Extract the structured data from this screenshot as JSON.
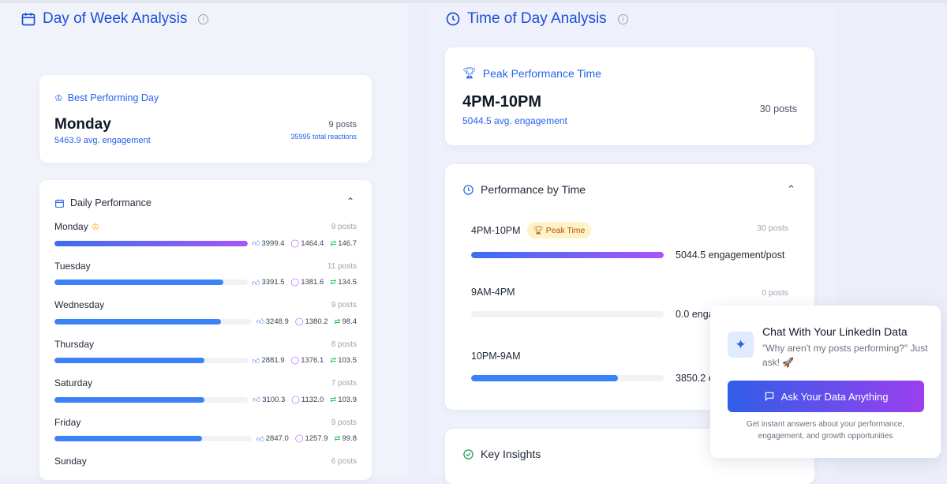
{
  "day_analysis": {
    "title": "Day of Week Analysis",
    "best": {
      "label": "Best Performing Day",
      "day": "Monday",
      "avg": "5463.9 avg. engagement",
      "posts": "9 posts",
      "reactions": "35995 total reactions"
    },
    "daily": {
      "title": "Daily Performance",
      "rows": [
        {
          "day": "Monday",
          "posts": "9 posts",
          "likes": "3999.4",
          "comments": "1464.4",
          "reposts": "146.7",
          "best": true
        },
        {
          "day": "Tuesday",
          "posts": "11 posts",
          "likes": "3391.5",
          "comments": "1381.6",
          "reposts": "134.5"
        },
        {
          "day": "Wednesday",
          "posts": "9 posts",
          "likes": "3248.9",
          "comments": "1380.2",
          "reposts": "98.4"
        },
        {
          "day": "Thursday",
          "posts": "8 posts",
          "likes": "2881.9",
          "comments": "1376.1",
          "reposts": "103.5"
        },
        {
          "day": "Saturday",
          "posts": "7 posts",
          "likes": "3100.3",
          "comments": "1132.0",
          "reposts": "103.9"
        },
        {
          "day": "Friday",
          "posts": "9 posts",
          "likes": "2847.0",
          "comments": "1257.9",
          "reposts": "99.8"
        },
        {
          "day": "Sunday",
          "posts": "6 posts"
        }
      ]
    }
  },
  "time_analysis": {
    "title": "Time of Day Analysis",
    "peak": {
      "label": "Peak Performance Time",
      "time": "4PM-10PM",
      "avg": "5044.5 avg. engagement",
      "posts": "30 posts"
    },
    "by_time": {
      "title": "Performance by Time",
      "badge": "Peak Time",
      "rows": [
        {
          "time": "4PM-10PM",
          "posts": "30 posts",
          "value": 5044.5,
          "label": "5044.5 engagement/post",
          "peak": true
        },
        {
          "time": "9AM-4PM",
          "posts": "0 posts",
          "value": 0,
          "label": "0.0 engagement/post"
        },
        {
          "time": "10PM-9AM",
          "posts": "",
          "value": 3850.2,
          "label": "3850.2 engagement/post"
        }
      ]
    },
    "insights": {
      "title": "Key Insights"
    }
  },
  "chat": {
    "title": "Chat With Your LinkedIn Data",
    "subtitle": "\"Why aren't my posts performing?\" Just ask! 🚀",
    "button": "Ask Your Data Anything",
    "footer": "Get instant answers about your performance, engagement, and growth opportunities"
  },
  "colors": {
    "accent": "#2563eb",
    "gradient_start": "#3b6ff0",
    "gradient_end": "#a855f7",
    "bar": "#3b82f6"
  }
}
